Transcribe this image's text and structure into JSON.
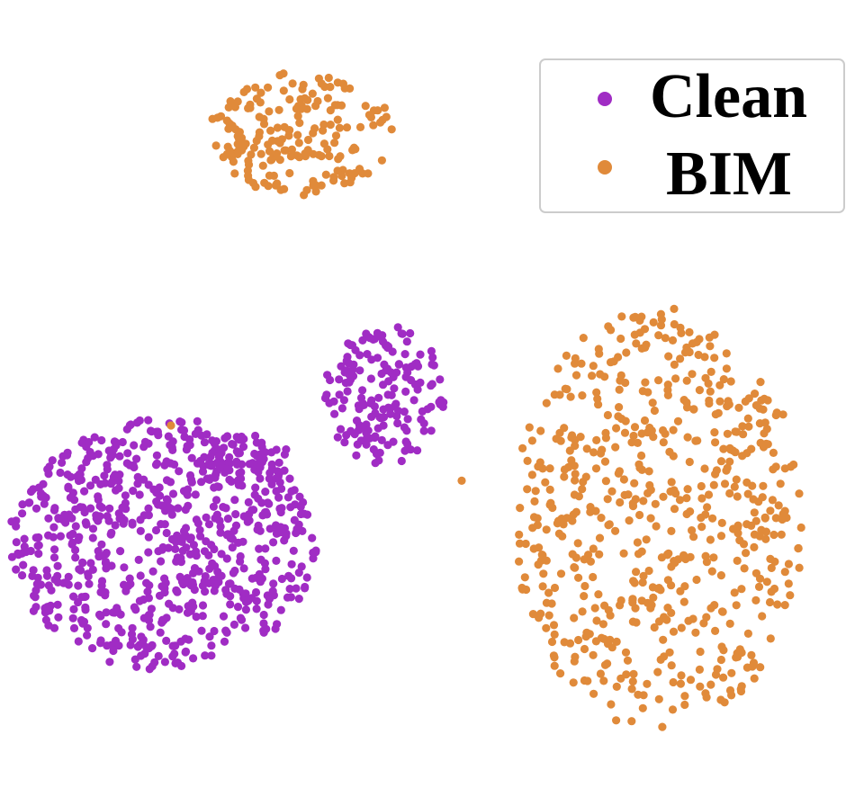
{
  "chart_data": {
    "type": "scatter",
    "title": "",
    "xlabel": "",
    "ylabel": "",
    "axes_visible": false,
    "grid": false,
    "legend_placement": "top-right",
    "series": [
      {
        "name": "Clean",
        "color": "#a02cc4",
        "clusters": [
          {
            "center": [
              0.19,
              0.69
            ],
            "spread": [
              0.18,
              0.16
            ],
            "count": 720
          },
          {
            "center": [
              0.45,
              0.5
            ],
            "spread": [
              0.07,
              0.09
            ],
            "count": 170
          },
          {
            "center": [
              0.29,
              0.58
            ],
            "spread": [
              0.05,
              0.03
            ],
            "count": 45
          }
        ],
        "outliers": []
      },
      {
        "name": "BIM",
        "color": "#e08a3a",
        "clusters": [
          {
            "center": [
              0.35,
              0.17
            ],
            "spread": [
              0.11,
              0.08
            ],
            "count": 190
          },
          {
            "center": [
              0.77,
              0.66
            ],
            "spread": [
              0.17,
              0.27
            ],
            "count": 600
          }
        ],
        "outliers": [
          [
            0.2,
            0.54
          ],
          [
            0.54,
            0.61
          ]
        ]
      }
    ]
  }
}
